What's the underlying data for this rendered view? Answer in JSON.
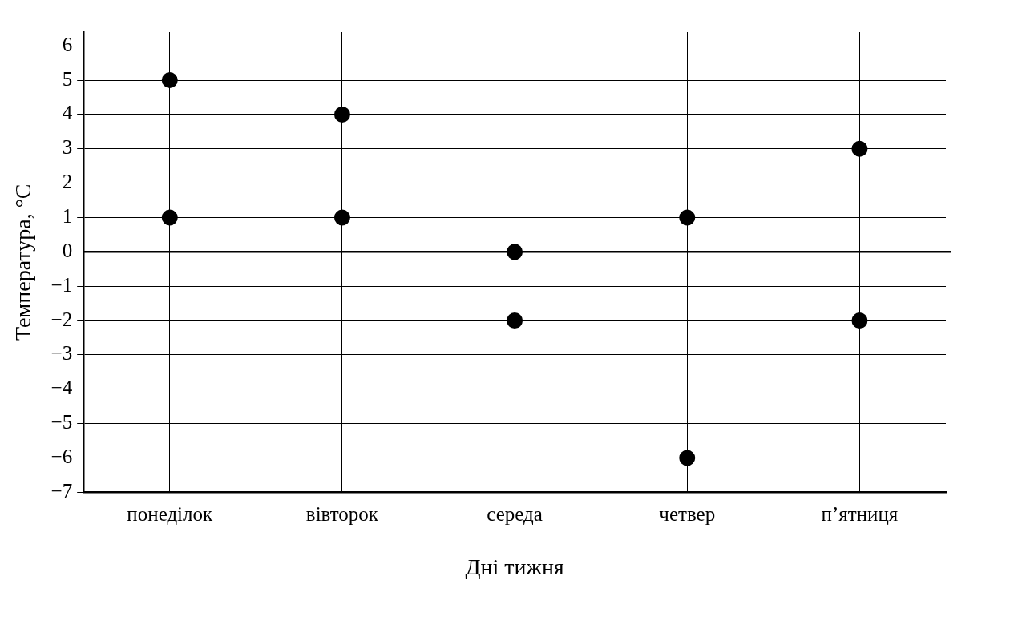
{
  "chart_data": {
    "type": "scatter",
    "xlabel": "Дні тижня",
    "ylabel": "Температура, °С",
    "categories": [
      "понеділок",
      "вівторок",
      "середа",
      "четвер",
      "п’ятниця"
    ],
    "series": [
      {
        "color": "#000000",
        "values": [
          5,
          4,
          0,
          1,
          3
        ]
      },
      {
        "color": "#000000",
        "values": [
          1,
          1,
          -2,
          -6,
          -2
        ]
      }
    ],
    "ylim": [
      -7,
      6.4
    ],
    "yticks": [
      {
        "value": -7,
        "label": "−7"
      },
      {
        "value": -6,
        "label": "−6"
      },
      {
        "value": -5,
        "label": "−5"
      },
      {
        "value": -4,
        "label": "−4"
      },
      {
        "value": -3,
        "label": "−3"
      },
      {
        "value": -2,
        "label": "−2"
      },
      {
        "value": -1,
        "label": "−1"
      },
      0,
      1,
      2,
      3,
      4,
      5,
      6
    ],
    "grid": true,
    "marker": "circle",
    "ref_lines": [
      {
        "axis": "y",
        "value": 0,
        "color": "#000000"
      }
    ]
  }
}
